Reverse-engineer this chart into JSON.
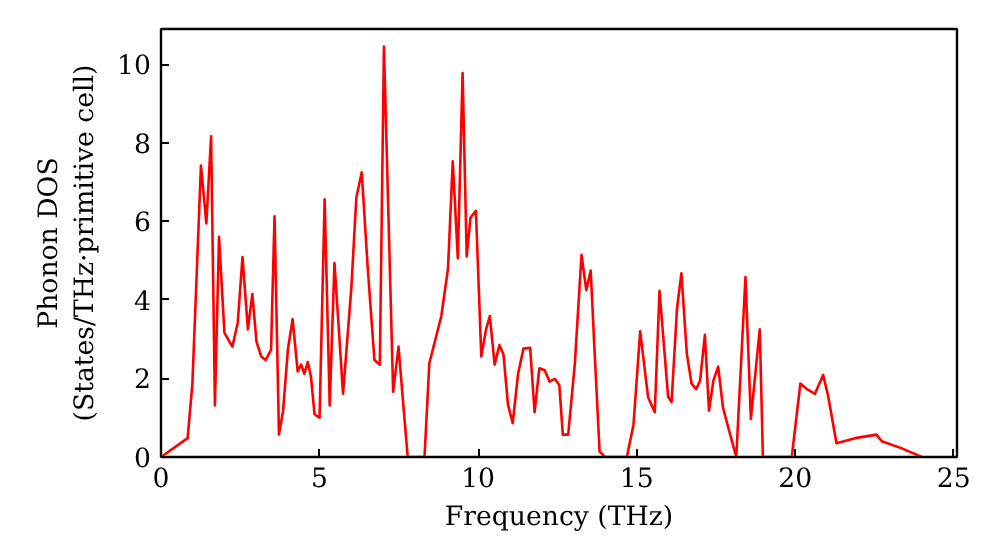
{
  "chart_data": {
    "type": "line",
    "xlabel": "Frequency (THz)",
    "ylabel": "Phonon DOS\n(States/THz·primitive cell)",
    "x": [
      0,
      0.84,
      0.99,
      1.26,
      1.43,
      1.58,
      1.7,
      1.83,
      2.0,
      2.25,
      2.42,
      2.57,
      2.74,
      2.88,
      3.01,
      3.16,
      3.3,
      3.47,
      3.58,
      3.72,
      3.85,
      4.0,
      4.15,
      4.31,
      4.42,
      4.52,
      4.63,
      4.73,
      4.84,
      5.0,
      5.16,
      5.32,
      5.47,
      5.74,
      6.0,
      6.16,
      6.33,
      6.52,
      6.73,
      6.9,
      7.03,
      7.32,
      7.49,
      7.64,
      7.78,
      8.31,
      8.46,
      8.84,
      9.05,
      9.2,
      9.36,
      9.51,
      9.64,
      9.76,
      9.93,
      10.1,
      10.25,
      10.37,
      10.52,
      10.67,
      10.8,
      10.94,
      11.09,
      11.26,
      11.43,
      11.64,
      11.78,
      11.93,
      12.1,
      12.25,
      12.42,
      12.56,
      12.67,
      12.84,
      13.05,
      13.26,
      13.41,
      13.55,
      13.68,
      13.83,
      14.0,
      14.69,
      14.9,
      15.11,
      15.36,
      15.57,
      15.72,
      15.99,
      16.1,
      16.27,
      16.41,
      16.58,
      16.73,
      16.88,
      17.0,
      17.15,
      17.28,
      17.42,
      17.57,
      17.72,
      17.89,
      18.14,
      18.43,
      18.6,
      18.88,
      18.98,
      19.89,
      20.16,
      20.37,
      20.62,
      20.88,
      21.04,
      21.3,
      21.89,
      22.56,
      22.73,
      23.36,
      23.99
    ],
    "series": [
      {
        "color": "#ff0000",
        "values": [
          0,
          0.48,
          1.87,
          7.42,
          5.95,
          8.17,
          1.31,
          5.61,
          3.16,
          2.81,
          3.42,
          5.09,
          3.25,
          4.15,
          2.94,
          2.56,
          2.47,
          2.73,
          6.13,
          0.57,
          1.18,
          2.73,
          3.51,
          2.18,
          2.35,
          2.12,
          2.42,
          2.04,
          1.09,
          1.0,
          6.56,
          1.31,
          4.94,
          1.61,
          4.28,
          6.61,
          7.25,
          4.8,
          2.47,
          2.35,
          10.45,
          1.66,
          2.81,
          1.34,
          0,
          0,
          2.38,
          3.59,
          4.8,
          7.53,
          5.06,
          9.78,
          5.11,
          6.1,
          6.27,
          2.56,
          3.25,
          3.59,
          2.35,
          2.85,
          2.61,
          1.34,
          0.86,
          2.12,
          2.76,
          2.78,
          1.14,
          2.26,
          2.21,
          1.92,
          1.99,
          1.83,
          0.57,
          0.57,
          2.38,
          5.15,
          4.25,
          4.75,
          2.56,
          0.14,
          0,
          0,
          0.83,
          3.2,
          1.52,
          1.14,
          4.23,
          1.54,
          1.4,
          3.77,
          4.68,
          2.64,
          1.87,
          1.73,
          1.95,
          3.11,
          1.18,
          1.95,
          2.3,
          1.26,
          0.74,
          0,
          4.58,
          0.97,
          3.25,
          0,
          0,
          1.87,
          1.73,
          1.61,
          2.09,
          1.54,
          0.35,
          0.48,
          0.57,
          0.4,
          0.22,
          0
        ]
      }
    ],
    "xlim": [
      0,
      25.1
    ],
    "ylim": [
      0,
      10.9
    ],
    "xticks": [
      0,
      5,
      10,
      15,
      20,
      25
    ],
    "yticks": [
      0,
      2,
      4,
      6,
      8,
      10
    ],
    "grid": false
  }
}
